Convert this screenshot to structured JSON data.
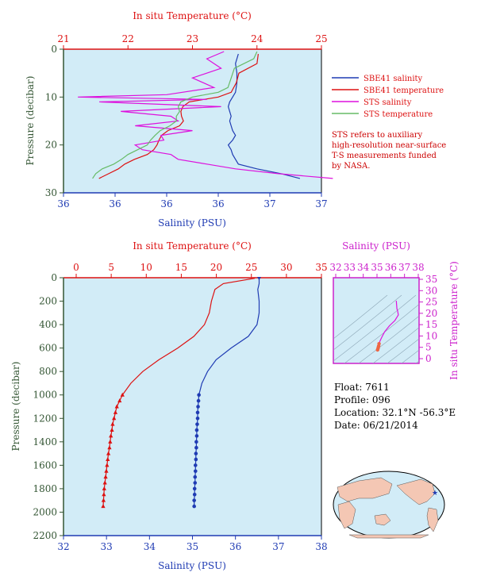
{
  "colors": {
    "blue": "#1f3bb3",
    "red": "#dd1111",
    "magenta": "#dd11dd",
    "green": "#66bb66",
    "plot_bg": "#d2ecf7",
    "axis_blue": "#1f3bb3",
    "axis_red": "#dd1111",
    "axis_green": "#335533",
    "axis_magenta": "#cc22cc"
  },
  "top_chart": {
    "top_axis_title": "In situ Temperature (°C)",
    "bottom_axis_title": "Salinity (PSU)",
    "left_axis_title": "Pressure (decibar)",
    "temp_ticks": [
      "21",
      "22",
      "23",
      "24",
      "25"
    ],
    "sal_ticks": [
      "36",
      "36",
      "36",
      "36",
      "37",
      "37"
    ],
    "pres_ticks": [
      "0",
      "10",
      "20",
      "30"
    ],
    "legend": [
      "SBE41 salinity",
      "SBE41 temperature",
      "STS salinity",
      "STS temperature"
    ],
    "note_lines": [
      "STS refers to auxiliary",
      "high-resolution near-surface",
      "T-S measurements funded",
      "by NASA."
    ]
  },
  "bottom_chart": {
    "top_axis_title": "In situ Temperature (°C)",
    "bottom_axis_title": "Salinity (PSU)",
    "left_axis_title": "Pressure (decibar)",
    "temp_ticks": [
      "0",
      "5",
      "10",
      "15",
      "20",
      "25",
      "30",
      "35"
    ],
    "sal_ticks": [
      "32",
      "33",
      "34",
      "35",
      "36",
      "37",
      "38"
    ],
    "pres_ticks": [
      "0",
      "200",
      "400",
      "600",
      "800",
      "1000",
      "1200",
      "1400",
      "1600",
      "1800",
      "2000",
      "2200"
    ]
  },
  "ts_inset": {
    "top_axis_title": "Salinity (PSU)",
    "right_axis_title": "In situ Temperature (°C)",
    "sal_ticks": [
      "32",
      "33",
      "34",
      "35",
      "36",
      "37",
      "38"
    ],
    "temp_ticks": [
      "0",
      "5",
      "10",
      "15",
      "20",
      "25",
      "30",
      "35"
    ]
  },
  "float_info": {
    "float": "Float:  7611",
    "profile": "Profile:  096",
    "location": "Location:  32.1°N  -56.3°E",
    "date": "Date:  06/21/2014"
  },
  "chart_data": [
    {
      "type": "line",
      "series": [
        {
          "name": "SBE41 salinity",
          "x_units": "PSU",
          "pressure": [
            1,
            3,
            5,
            7,
            9,
            10,
            11,
            12,
            13,
            14,
            15,
            16,
            17,
            18,
            19,
            20,
            21,
            22,
            23,
            24,
            25,
            26,
            27
          ],
          "values": [
            36.42,
            36.4,
            36.41,
            36.41,
            36.4,
            36.38,
            36.36,
            36.35,
            36.36,
            36.37,
            36.36,
            36.37,
            36.38,
            36.4,
            36.38,
            36.35,
            36.37,
            36.38,
            36.4,
            36.42,
            36.55,
            36.72,
            36.85
          ]
        },
        {
          "name": "SBE41 temperature",
          "x_units": "°C",
          "pressure": [
            1,
            3,
            5,
            7,
            9,
            10,
            11,
            12,
            13,
            14,
            15,
            16,
            17,
            18,
            19,
            20,
            21,
            22,
            23,
            24,
            25,
            26,
            27
          ],
          "values": [
            24.02,
            24.0,
            23.72,
            23.68,
            23.6,
            23.4,
            22.95,
            22.85,
            22.82,
            22.83,
            22.86,
            22.8,
            22.62,
            22.52,
            22.48,
            22.45,
            22.4,
            22.3,
            22.1,
            21.95,
            21.85,
            21.7,
            21.55
          ]
        },
        {
          "name": "STS salinity",
          "x_units": "PSU",
          "pressure": [
            0.5,
            2,
            4,
            6,
            8,
            9.5,
            10,
            10.5,
            11,
            12,
            13,
            14,
            15,
            16,
            17,
            18,
            19,
            20,
            21,
            22,
            23,
            24,
            25,
            26,
            27
          ],
          "values": [
            36.32,
            36.2,
            36.3,
            36.1,
            36.25,
            35.92,
            35.3,
            36.2,
            35.45,
            36.3,
            35.6,
            35.95,
            36.0,
            35.7,
            36.1,
            35.88,
            35.9,
            35.7,
            35.75,
            35.95,
            36.0,
            36.2,
            36.4,
            36.7,
            37.08
          ]
        },
        {
          "name": "STS temperature",
          "x_units": "°C",
          "pressure": [
            0.5,
            2,
            4,
            6,
            8,
            9,
            10,
            11,
            12,
            13,
            14,
            15,
            16,
            17,
            18,
            19,
            20,
            21,
            22,
            23,
            24,
            25,
            26,
            27
          ],
          "values": [
            24.0,
            23.95,
            23.65,
            23.6,
            23.55,
            23.4,
            23.0,
            22.82,
            22.78,
            22.8,
            22.75,
            22.75,
            22.65,
            22.5,
            22.42,
            22.35,
            22.3,
            22.15,
            22.0,
            21.9,
            21.78,
            21.6,
            21.5,
            21.45
          ]
        }
      ],
      "x_top_label": "In situ Temperature (°C)",
      "x_bottom_label": "Salinity (PSU)",
      "ylabel": "Pressure (decibar)",
      "temperature_range": [
        21,
        25
      ],
      "salinity_range": [
        35.2,
        37.0
      ],
      "pressure_range": [
        0,
        30
      ],
      "y_reversed": true,
      "legend_position": "right"
    },
    {
      "type": "line",
      "series": [
        {
          "name": "Salinity",
          "x_units": "PSU",
          "pressure": [
            5,
            50,
            100,
            200,
            300,
            400,
            500,
            600,
            700,
            800,
            900,
            1000,
            1050,
            1100,
            1150,
            1200,
            1250,
            1300,
            1350,
            1400,
            1450,
            1500,
            1550,
            1600,
            1650,
            1700,
            1750,
            1800,
            1850,
            1900,
            1950
          ],
          "values": [
            36.55,
            36.55,
            36.52,
            36.55,
            36.55,
            36.5,
            36.3,
            35.9,
            35.55,
            35.35,
            35.22,
            35.15,
            35.14,
            35.13,
            35.12,
            35.12,
            35.11,
            35.1,
            35.1,
            35.09,
            35.09,
            35.08,
            35.08,
            35.07,
            35.07,
            35.06,
            35.06,
            35.05,
            35.05,
            35.04,
            35.04
          ]
        },
        {
          "name": "Temperature",
          "x_units": "°C",
          "pressure": [
            5,
            50,
            100,
            200,
            300,
            400,
            500,
            600,
            700,
            800,
            900,
            1000,
            1050,
            1100,
            1150,
            1200,
            1250,
            1300,
            1350,
            1400,
            1450,
            1500,
            1550,
            1600,
            1650,
            1700,
            1750,
            1800,
            1850,
            1900,
            1950
          ],
          "values": [
            25.5,
            21.0,
            19.8,
            19.3,
            19.0,
            18.3,
            16.8,
            14.5,
            11.8,
            9.5,
            7.8,
            6.6,
            6.2,
            5.8,
            5.6,
            5.4,
            5.2,
            5.1,
            4.95,
            4.85,
            4.75,
            4.6,
            4.5,
            4.4,
            4.3,
            4.2,
            4.1,
            4.0,
            3.95,
            3.9,
            3.85
          ]
        }
      ],
      "x_top_label": "In situ Temperature (°C)",
      "x_bottom_label": "Salinity (PSU)",
      "ylabel": "Pressure (decibar)",
      "temperature_range": [
        0,
        35
      ],
      "salinity_range": [
        32,
        38
      ],
      "pressure_range": [
        0,
        2200
      ],
      "y_reversed": true
    },
    {
      "type": "line",
      "series": [
        {
          "name": "T-S",
          "salinity": [
            36.4,
            36.45,
            36.5,
            36.55,
            36.3,
            35.9,
            35.55,
            35.35,
            35.22,
            35.15,
            35.12,
            35.1,
            35.08,
            35.05,
            35.04
          ],
          "temperature": [
            25.5,
            22.0,
            21.0,
            19.3,
            16.8,
            14.5,
            11.8,
            9.5,
            7.8,
            6.6,
            5.6,
            5.1,
            4.6,
            4.0,
            3.85
          ]
        }
      ],
      "x_label": "Salinity (PSU)",
      "y_label": "In situ Temperature (°C)",
      "xlim": [
        32,
        38
      ],
      "ylim": [
        0,
        35
      ]
    }
  ]
}
